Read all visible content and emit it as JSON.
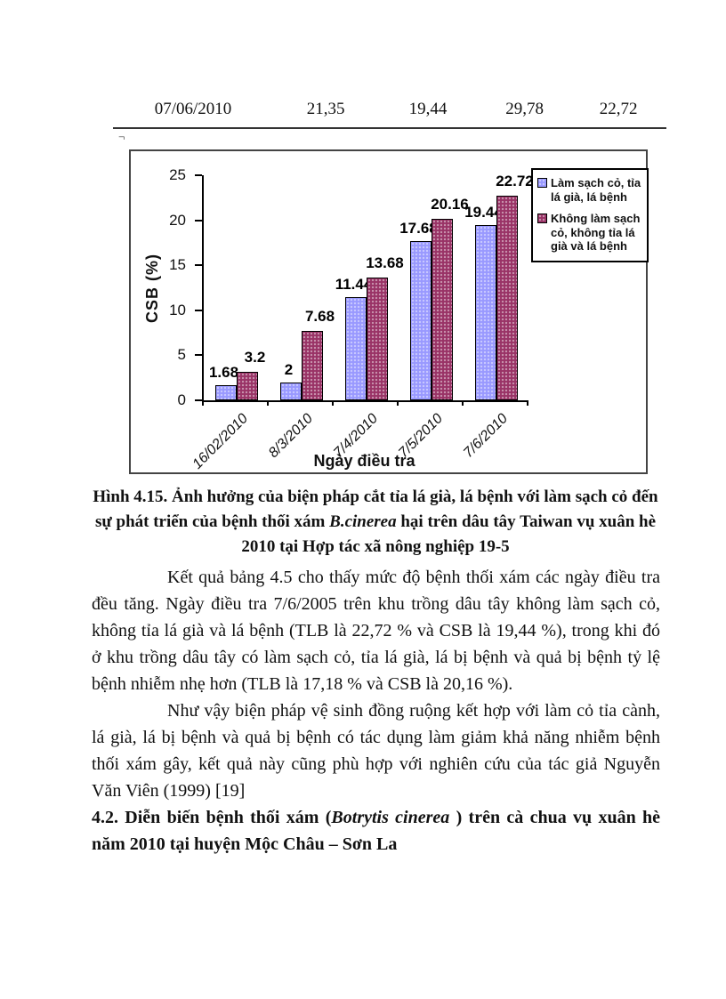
{
  "top_row": {
    "cells": [
      "07/06/2010",
      "21,35",
      "19,44",
      "29,78",
      "22,72"
    ]
  },
  "stray_mark": "¬",
  "chart_data": {
    "type": "bar",
    "categories": [
      "16/02/2010",
      "8/3/2010",
      "7/4/2010",
      "7/5/2010",
      "7/6/2010"
    ],
    "series": [
      {
        "name": "Làm sạch cỏ, tỉa lá già, lá bệnh",
        "color": "#9999FF",
        "values": [
          1.68,
          2,
          11.44,
          17.68,
          19.44
        ]
      },
      {
        "name": "Không làm sạch cỏ, không tỉa lá già và lá bệnh",
        "color": "#993366",
        "values": [
          3.2,
          7.68,
          13.68,
          20.16,
          22.72
        ]
      }
    ],
    "title": "",
    "xlabel": "Ngày điều tra",
    "ylabel": "CSB (%)",
    "ylim": [
      0,
      25
    ],
    "yticks": [
      0,
      5,
      10,
      15,
      20,
      25
    ],
    "grid": false,
    "legend_position": "top-right",
    "data_labels": true
  },
  "figure_caption": {
    "pre": "Hình 4.15. Ảnh hưởng của biện pháp cắt tỉa lá già, lá bệnh với làm sạch cỏ đến sự phát triển của bệnh thối xám ",
    "italic": "B.cinerea",
    "post": " hại trên dâu tây Taiwan vụ xuân hè 2010 tại Hợp tác xã nông nghiệp 19-5"
  },
  "body": {
    "paragraph_1": "Kết quả bảng 4.5 cho thấy mức độ bệnh thối xám các ngày điều tra đều tăng. Ngày điều tra 7/6/2005 trên khu trồng dâu tây không làm sạch cỏ, không tỉa lá già và lá bệnh (TLB là 22,72 % và CSB là 19,44 %), trong khi đó ở khu trồng dâu tây có làm sạch cỏ, tỉa lá già, lá bị bệnh và quả bị bệnh tỷ lệ bệnh nhiễm nhẹ hơn (TLB là 17,18 % và CSB là 20,16 %).",
    "paragraph_2": "Như vậy biện pháp vệ sinh đồng ruộng kết hợp với làm cỏ tỉa cành, lá già, lá bị bệnh và quả bị bệnh có tác dụng làm giảm khả năng nhiễm bệnh thối xám gây, kết quả này cũng phù hợp với nghiên cứu của tác giả Nguyễn Văn Viên (1999) [19]",
    "heading": {
      "pre": "4.2. Diễn biến bệnh thối xám (",
      "italic": "Botrytis cinerea ",
      "post": ") trên cà chua vụ xuân hè năm 2010 tại huyện Mộc Châu – Sơn La"
    }
  }
}
